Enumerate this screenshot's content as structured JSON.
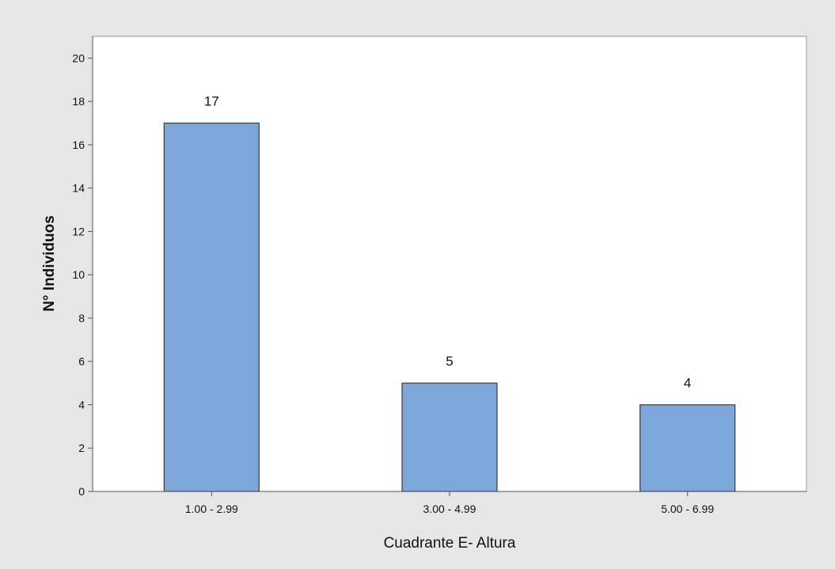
{
  "chart_data": {
    "type": "bar",
    "categories": [
      "1.00 - 2.99",
      "3.00 - 4.99",
      "5.00 -  6.99"
    ],
    "values": [
      17,
      5,
      4
    ],
    "data_labels": [
      "17",
      "5",
      "4"
    ],
    "title": "",
    "xlabel": "Cuadrante E- Altura",
    "ylabel": "N° Individuos",
    "ylim": [
      0,
      21
    ],
    "yticks": [
      0,
      2,
      4,
      6,
      8,
      10,
      12,
      14,
      16,
      18,
      20
    ],
    "grid": false,
    "legend": "none",
    "bar_color": "#7ba7da",
    "bar_edge_color": "#3c3c3c",
    "plot_background": "#ffffff",
    "figure_background": "#e6e6e6"
  }
}
